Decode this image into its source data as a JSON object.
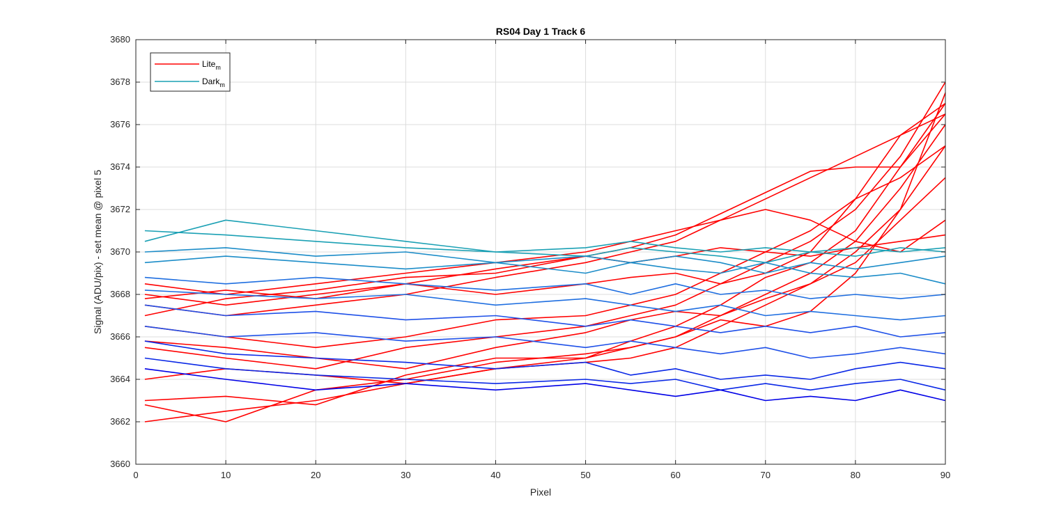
{
  "chart_data": {
    "type": "line",
    "title": "RS04 Day 1 Track 6",
    "xlabel": "Pixel",
    "ylabel": "Signal (ADU/pix) - set mean @ pixel 5",
    "xlim": [
      0,
      90
    ],
    "ylim": [
      3660,
      3680
    ],
    "x_ticks": [
      0,
      10,
      20,
      30,
      40,
      50,
      60,
      70,
      80,
      90
    ],
    "y_ticks": [
      3660,
      3662,
      3664,
      3666,
      3668,
      3670,
      3672,
      3674,
      3676,
      3678,
      3680
    ],
    "x_tick_labels": [
      "0",
      "10",
      "20",
      "30",
      "40",
      "50",
      "60",
      "70",
      "80",
      "90"
    ],
    "y_tick_labels": [
      "3660",
      "3662",
      "3664",
      "3666",
      "3668",
      "3670",
      "3672",
      "3674",
      "3676",
      "3678",
      "3680"
    ],
    "grid": true,
    "legend_position": "top-left",
    "legend": [
      {
        "label": "Lite",
        "subscript": "m",
        "color": "#ff0000"
      },
      {
        "label": "Dark",
        "subscript": "m",
        "color": "#1aa0b4"
      }
    ],
    "x": [
      1,
      10,
      20,
      30,
      40,
      50,
      55,
      60,
      65,
      70,
      75,
      80,
      85,
      90
    ],
    "series": [
      {
        "color": "#ff0000",
        "values": [
          3662.0,
          3662.5,
          3663.0,
          3663.8,
          3664.5,
          3664.8,
          3665.0,
          3665.5,
          3666.5,
          3667.5,
          3668.5,
          3670.0,
          3672.0,
          3677.5
        ]
      },
      {
        "color": "#ff0000",
        "values": [
          3662.8,
          3662.0,
          3663.5,
          3664.0,
          3664.8,
          3665.2,
          3665.5,
          3666.0,
          3667.0,
          3668.0,
          3669.0,
          3670.5,
          3673.0,
          3676.0
        ]
      },
      {
        "color": "#ff0000",
        "values": [
          3663.0,
          3663.2,
          3662.8,
          3664.2,
          3665.0,
          3665.0,
          3665.8,
          3666.5,
          3667.5,
          3668.8,
          3669.5,
          3671.0,
          3674.0,
          3677.0
        ]
      },
      {
        "color": "#ff0000",
        "values": [
          3665.5,
          3665.0,
          3664.5,
          3665.5,
          3666.0,
          3666.5,
          3667.0,
          3667.5,
          3668.5,
          3669.5,
          3670.5,
          3672.0,
          3674.5,
          3678.0
        ]
      },
      {
        "color": "#ff0000",
        "values": [
          3665.8,
          3665.5,
          3665.0,
          3664.5,
          3665.5,
          3666.2,
          3666.8,
          3667.2,
          3667.0,
          3667.8,
          3668.5,
          3669.5,
          3671.5,
          3673.5
        ]
      },
      {
        "color": "#ff0000",
        "values": [
          3666.5,
          3666.0,
          3665.5,
          3666.0,
          3666.8,
          3667.0,
          3667.5,
          3668.0,
          3669.0,
          3670.0,
          3671.0,
          3672.5,
          3673.5,
          3675.0
        ]
      },
      {
        "color": "#ff0000",
        "values": [
          3667.5,
          3667.0,
          3667.5,
          3668.0,
          3668.8,
          3669.5,
          3670.0,
          3670.5,
          3671.5,
          3672.5,
          3673.5,
          3674.5,
          3675.5,
          3677.0
        ]
      },
      {
        "color": "#ff0000",
        "values": [
          3668.0,
          3667.5,
          3668.0,
          3668.5,
          3669.2,
          3669.8,
          3670.2,
          3670.8,
          3671.8,
          3672.8,
          3673.8,
          3674.0,
          3674.0,
          3676.5
        ]
      },
      {
        "color": "#ff0000",
        "values": [
          3668.5,
          3668.0,
          3668.5,
          3669.0,
          3669.5,
          3670.0,
          3670.5,
          3671.0,
          3671.5,
          3672.0,
          3671.5,
          3670.5,
          3670.0,
          3671.5
        ]
      },
      {
        "color": "#ff0000",
        "values": [
          3667.0,
          3667.8,
          3668.2,
          3668.8,
          3669.0,
          3669.8,
          3669.5,
          3669.8,
          3670.2,
          3670.0,
          3669.8,
          3670.2,
          3670.5,
          3670.8
        ]
      },
      {
        "color": "#ff0000",
        "values": [
          3667.8,
          3668.2,
          3667.8,
          3668.5,
          3668.0,
          3668.5,
          3668.8,
          3669.0,
          3668.5,
          3669.0,
          3670.0,
          3672.5,
          3675.5,
          3676.5
        ]
      },
      {
        "color": "#ff0000",
        "values": [
          3664.0,
          3664.5,
          3664.2,
          3663.8,
          3664.5,
          3665.0,
          3665.5,
          3666.0,
          3666.8,
          3666.5,
          3667.2,
          3669.0,
          3672.0,
          3675.0
        ]
      },
      {
        "color": "#1aa0b4",
        "values": [
          3671.0,
          3670.8,
          3670.5,
          3670.2,
          3670.0,
          3670.2,
          3670.5,
          3670.2,
          3670.0,
          3670.2,
          3670.0,
          3670.2,
          3670.0,
          3670.2
        ]
      },
      {
        "color": "#1aa0b4",
        "values": [
          3670.5,
          3671.5,
          3671.0,
          3670.5,
          3670.0,
          3669.8,
          3670.2,
          3670.0,
          3669.8,
          3669.5,
          3670.0,
          3669.8,
          3670.2,
          3670.0
        ]
      },
      {
        "color": "#1b8cc8",
        "values": [
          3670.0,
          3670.2,
          3669.8,
          3670.0,
          3669.5,
          3669.8,
          3669.5,
          3669.8,
          3669.5,
          3669.0,
          3669.5,
          3669.2,
          3669.5,
          3669.8
        ]
      },
      {
        "color": "#1b8cc8",
        "values": [
          3669.5,
          3669.8,
          3669.5,
          3669.2,
          3669.5,
          3669.0,
          3669.5,
          3669.2,
          3669.0,
          3669.5,
          3669.0,
          3668.8,
          3669.0,
          3668.5
        ]
      },
      {
        "color": "#1e6ee0",
        "values": [
          3668.8,
          3668.5,
          3668.8,
          3668.5,
          3668.2,
          3668.5,
          3668.0,
          3668.5,
          3668.0,
          3668.2,
          3667.8,
          3668.0,
          3667.8,
          3668.0
        ]
      },
      {
        "color": "#1e6ee0",
        "values": [
          3668.2,
          3668.0,
          3667.8,
          3668.0,
          3667.5,
          3667.8,
          3667.5,
          3667.2,
          3667.5,
          3667.0,
          3667.2,
          3667.0,
          3666.8,
          3667.0
        ]
      },
      {
        "color": "#1e50e8",
        "values": [
          3667.5,
          3667.0,
          3667.2,
          3666.8,
          3667.0,
          3666.5,
          3666.8,
          3666.5,
          3666.2,
          3666.5,
          3666.2,
          3666.5,
          3666.0,
          3666.2
        ]
      },
      {
        "color": "#1e50e8",
        "values": [
          3666.5,
          3666.0,
          3666.2,
          3665.8,
          3666.0,
          3665.5,
          3665.8,
          3665.5,
          3665.2,
          3665.5,
          3665.0,
          3665.2,
          3665.5,
          3665.2
        ]
      },
      {
        "color": "#0a28e6",
        "values": [
          3665.8,
          3665.2,
          3665.0,
          3664.8,
          3664.5,
          3664.8,
          3664.2,
          3664.5,
          3664.0,
          3664.2,
          3664.0,
          3664.5,
          3664.8,
          3664.5
        ]
      },
      {
        "color": "#0a28e6",
        "values": [
          3665.0,
          3664.5,
          3664.2,
          3664.0,
          3663.8,
          3664.0,
          3663.8,
          3664.0,
          3663.5,
          3663.8,
          3663.5,
          3663.8,
          3664.0,
          3663.5
        ]
      },
      {
        "color": "#0000e6",
        "values": [
          3664.5,
          3664.0,
          3663.5,
          3663.8,
          3663.5,
          3663.8,
          3663.5,
          3663.2,
          3663.5,
          3663.0,
          3663.2,
          3663.0,
          3663.5,
          3663.0
        ]
      }
    ]
  }
}
